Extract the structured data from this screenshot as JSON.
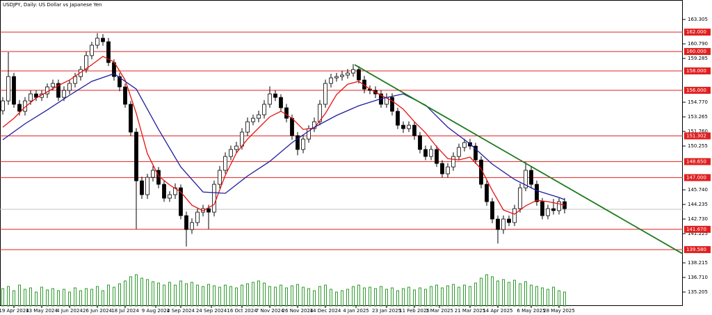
{
  "chart_data": {
    "type": "candlestick",
    "title": "USDJPY, Daily:  US Dollar vs Japanese Yen",
    "xlim": [
      -0.5,
      122.25
    ],
    "ylim": [
      133.77,
      165.31
    ],
    "xticks": [
      {
        "value": 2,
        "label": "19 Apr 2024"
      },
      {
        "value": 7,
        "label": "13 May 2024"
      },
      {
        "value": 12,
        "label": "4 Jun 2024"
      },
      {
        "value": 17,
        "label": "26 Jun 2024"
      },
      {
        "value": 22,
        "label": "18 Jul 2024"
      },
      {
        "value": 27.5,
        "label": "9 Aug 2024"
      },
      {
        "value": 32,
        "label": "2 Sep 2024"
      },
      {
        "value": 37.5,
        "label": "24 Sep 2024"
      },
      {
        "value": 43,
        "label": "16 Oct 2024"
      },
      {
        "value": 48,
        "label": "7 Nov 2024"
      },
      {
        "value": 53,
        "label": "26 Nov 2024"
      },
      {
        "value": 58,
        "label": "14 Dec 2024"
      },
      {
        "value": 63.5,
        "label": "4 Jan 2025"
      },
      {
        "value": 69,
        "label": "23 Jan 2025"
      },
      {
        "value": 74,
        "label": "11 Feb 2025"
      },
      {
        "value": 78.5,
        "label": "1 Mar 2025"
      },
      {
        "value": 84,
        "label": "21 Mar 2025"
      },
      {
        "value": 89,
        "label": "14 Apr 2025"
      },
      {
        "value": 95,
        "label": "6 May 2025"
      },
      {
        "value": 100,
        "label": "28 May 2025"
      }
    ],
    "yticks": [
      163.305,
      {
        "value": 160.79,
        "label": "160.790"
      },
      159.285,
      {
        "value": 154.77,
        "label": "154.770"
      },
      153.265,
      {
        "value": 151.76,
        "label": "151.760"
      },
      150.255,
      {
        "value": 145.74,
        "label": "145.740"
      },
      144.235,
      {
        "value": 142.73,
        "label": "142.730"
      },
      141.225,
      138.215,
      {
        "value": 136.71,
        "label": "136.710"
      },
      135.205
    ],
    "levels": [
      {
        "value": 162,
        "label": "162.000"
      },
      {
        "value": 160,
        "label": "160.000"
      },
      {
        "value": 158,
        "label": "158.000"
      },
      {
        "value": 156,
        "label": "156.000"
      },
      {
        "value": 151.302,
        "label": "151.302"
      },
      {
        "value": 148.65,
        "label": "148.650"
      },
      {
        "value": 147,
        "label": "147.000"
      },
      {
        "value": 141.67,
        "label": "141.670"
      },
      {
        "value": 139.58,
        "label": "139.580"
      }
    ],
    "level_color": "#e02020",
    "current_price": 143.73,
    "trendline": {
      "x": [
        63.25,
        122.25
      ],
      "values": [
        158.64,
        139.14
      ],
      "color": "#1e7a1e"
    },
    "ohlc": [
      [
        153.9,
        155.3,
        153.5,
        154.91
      ],
      [
        154.91,
        159.93,
        154.5,
        157.42
      ],
      [
        157.42,
        157.8,
        154.2,
        154.56
      ],
      [
        154.56,
        155.0,
        153.4,
        153.84
      ],
      [
        153.84,
        155.3,
        153.4,
        154.91
      ],
      [
        154.91,
        156.0,
        154.5,
        155.63
      ],
      [
        155.63,
        156.0,
        154.9,
        155.27
      ],
      [
        155.27,
        156.0,
        154.9,
        155.63
      ],
      [
        155.63,
        156.7,
        155.2,
        156.35
      ],
      [
        156.35,
        157.1,
        156.0,
        156.71
      ],
      [
        156.71,
        157.1,
        154.9,
        155.27
      ],
      [
        155.27,
        156.4,
        154.9,
        155.99
      ],
      [
        155.99,
        157.1,
        155.6,
        156.71
      ],
      [
        156.71,
        157.8,
        156.3,
        157.42
      ],
      [
        157.42,
        158.5,
        157.0,
        158.14
      ],
      [
        158.14,
        160.0,
        157.8,
        159.58
      ],
      [
        159.58,
        161.0,
        159.2,
        160.65
      ],
      [
        160.65,
        161.9,
        160.3,
        161.37
      ],
      [
        161.37,
        161.8,
        160.6,
        161.01
      ],
      [
        161.01,
        161.4,
        158.5,
        158.86
      ],
      [
        158.86,
        159.2,
        157.0,
        157.42
      ],
      [
        157.42,
        157.8,
        155.9,
        156.35
      ],
      [
        156.35,
        156.7,
        154.2,
        154.56
      ],
      [
        154.56,
        154.9,
        151.3,
        151.69
      ],
      [
        151.69,
        152.1,
        141.7,
        146.67
      ],
      [
        146.67,
        147.1,
        144.8,
        145.24
      ],
      [
        145.24,
        147.4,
        144.8,
        147.03
      ],
      [
        147.03,
        148.2,
        146.6,
        147.75
      ],
      [
        147.75,
        148.1,
        145.9,
        146.31
      ],
      [
        146.31,
        146.7,
        144.5,
        144.88
      ],
      [
        144.88,
        145.6,
        144.5,
        145.24
      ],
      [
        145.24,
        146.4,
        144.8,
        145.95
      ],
      [
        145.95,
        146.3,
        142.7,
        143.08
      ],
      [
        143.08,
        143.5,
        139.9,
        141.65
      ],
      [
        141.65,
        142.8,
        141.2,
        142.37
      ],
      [
        142.37,
        143.8,
        142.0,
        143.44
      ],
      [
        143.44,
        144.2,
        143.0,
        143.8
      ],
      [
        143.8,
        144.2,
        141.7,
        143.44
      ],
      [
        143.44,
        146.7,
        143.0,
        146.31
      ],
      [
        146.31,
        148.2,
        145.9,
        147.75
      ],
      [
        147.75,
        149.6,
        147.4,
        149.18
      ],
      [
        149.18,
        150.3,
        148.8,
        149.9
      ],
      [
        149.9,
        150.7,
        149.5,
        150.25
      ],
      [
        150.25,
        152.1,
        149.9,
        151.69
      ],
      [
        151.69,
        153.2,
        151.3,
        152.76
      ],
      [
        152.76,
        153.5,
        152.4,
        153.12
      ],
      [
        153.12,
        153.9,
        152.7,
        153.48
      ],
      [
        153.48,
        155.0,
        153.1,
        154.56
      ],
      [
        154.56,
        156.4,
        154.2,
        155.63
      ],
      [
        155.63,
        156.0,
        154.9,
        155.27
      ],
      [
        155.27,
        155.6,
        153.8,
        154.2
      ],
      [
        154.2,
        154.6,
        152.7,
        153.12
      ],
      [
        153.12,
        153.5,
        150.9,
        151.33
      ],
      [
        151.33,
        151.7,
        149.3,
        149.9
      ],
      [
        149.9,
        151.4,
        149.5,
        150.97
      ],
      [
        150.97,
        152.4,
        150.6,
        152.05
      ],
      [
        152.05,
        153.2,
        151.7,
        152.76
      ],
      [
        152.76,
        155.0,
        152.4,
        154.56
      ],
      [
        154.56,
        157.1,
        154.2,
        156.71
      ],
      [
        156.71,
        157.7,
        156.3,
        157.28
      ],
      [
        157.28,
        157.8,
        156.9,
        157.42
      ],
      [
        157.42,
        158.0,
        157.0,
        157.57
      ],
      [
        157.57,
        158.2,
        157.2,
        157.78
      ],
      [
        157.78,
        158.7,
        157.4,
        158.14
      ],
      [
        158.14,
        158.5,
        156.7,
        157.06
      ],
      [
        157.06,
        157.5,
        155.7,
        156.13
      ],
      [
        156.13,
        156.5,
        155.6,
        155.99
      ],
      [
        155.99,
        156.4,
        155.2,
        155.63
      ],
      [
        155.63,
        156.0,
        154.2,
        154.56
      ],
      [
        154.56,
        155.7,
        154.2,
        155.27
      ],
      [
        155.27,
        155.7,
        153.4,
        153.84
      ],
      [
        153.84,
        154.2,
        152.0,
        152.4
      ],
      [
        152.4,
        152.8,
        151.6,
        152.05
      ],
      [
        152.05,
        152.8,
        151.7,
        152.4
      ],
      [
        152.4,
        152.8,
        150.9,
        151.33
      ],
      [
        151.33,
        151.7,
        149.5,
        149.9
      ],
      [
        149.9,
        150.3,
        148.8,
        149.18
      ],
      [
        149.18,
        150.3,
        148.8,
        149.9
      ],
      [
        149.9,
        150.3,
        148.1,
        148.46
      ],
      [
        148.46,
        148.8,
        147.0,
        147.39
      ],
      [
        147.39,
        148.5,
        147.0,
        148.1
      ],
      [
        148.1,
        149.6,
        147.7,
        149.18
      ],
      [
        149.18,
        150.5,
        148.8,
        150.11
      ],
      [
        150.11,
        151.0,
        149.7,
        150.61
      ],
      [
        150.61,
        151.0,
        149.9,
        150.25
      ],
      [
        150.25,
        150.6,
        148.4,
        148.82
      ],
      [
        148.82,
        149.2,
        145.9,
        146.31
      ],
      [
        146.31,
        146.7,
        144.1,
        144.52
      ],
      [
        144.52,
        144.9,
        142.3,
        142.73
      ],
      [
        142.73,
        143.1,
        140.2,
        141.65
      ],
      [
        141.65,
        143.1,
        141.2,
        142.73
      ],
      [
        142.73,
        143.1,
        142.0,
        142.37
      ],
      [
        142.37,
        144.2,
        142.0,
        143.8
      ],
      [
        143.8,
        146.4,
        143.4,
        145.95
      ],
      [
        145.95,
        148.6,
        145.6,
        147.75
      ],
      [
        147.75,
        148.1,
        145.9,
        146.31
      ],
      [
        146.31,
        146.7,
        144.1,
        144.52
      ],
      [
        144.52,
        144.9,
        142.7,
        143.08
      ],
      [
        143.08,
        144.2,
        142.7,
        143.8
      ],
      [
        143.8,
        144.8,
        143.2,
        143.6
      ],
      [
        143.6,
        144.9,
        143.2,
        144.52
      ],
      [
        144.52,
        144.9,
        143.3,
        143.8
      ]
    ],
    "volume": [
      25,
      28,
      22,
      30,
      24,
      26,
      20,
      27,
      23,
      25,
      22,
      24,
      20,
      26,
      22,
      25,
      24,
      28,
      22,
      30,
      27,
      32,
      36,
      42,
      45,
      40,
      38,
      35,
      33,
      30,
      34,
      30,
      36,
      32,
      34,
      30,
      28,
      31,
      29,
      27,
      30,
      28,
      26,
      30,
      32,
      34,
      36,
      33,
      28,
      27,
      30,
      26,
      29,
      31,
      27,
      25,
      22,
      28,
      30,
      24,
      20,
      22,
      24,
      28,
      30,
      26,
      27,
      25,
      28,
      24,
      26,
      22,
      25,
      27,
      23,
      26,
      24,
      28,
      30,
      26,
      29,
      31,
      27,
      30,
      28,
      33,
      40,
      45,
      42,
      36,
      38,
      34,
      37,
      32,
      35,
      30,
      28,
      26,
      24,
      27,
      22,
      20
    ],
    "volume_color": "#2e9b2e",
    "moving_averages": [
      {
        "color": "#e81010",
        "x": [
          0,
          2,
          4,
          6,
          8,
          10,
          12,
          14,
          16,
          18,
          20,
          22,
          24,
          26,
          28,
          30,
          32,
          34,
          36,
          38,
          40,
          42,
          44,
          46,
          48,
          50,
          52,
          54,
          56,
          58,
          60,
          62,
          64,
          66,
          68,
          70,
          72,
          74,
          76,
          78,
          80,
          82,
          84,
          86,
          88,
          90,
          92,
          94,
          96,
          98,
          100,
          101
        ],
        "values": [
          152.19,
          153.12,
          154.27,
          155.2,
          155.85,
          156.49,
          157.06,
          157.85,
          158.64,
          159.5,
          158.93,
          157.06,
          153.62,
          149.46,
          147.17,
          146.24,
          145.52,
          144.16,
          143.58,
          144.23,
          147.24,
          149.54,
          150.97,
          152.12,
          153.26,
          153.84,
          153.12,
          151.97,
          152.12,
          153.62,
          155.56,
          156.63,
          156.92,
          156.13,
          155.49,
          154.91,
          154.05,
          152.76,
          151.62,
          150.18,
          148.96,
          148.82,
          149.11,
          147.89,
          145.66,
          143.66,
          143.23,
          144.09,
          144.66,
          144.52,
          144.3,
          144.16
        ]
      },
      {
        "color": "#1c1c9c",
        "x": [
          0,
          4,
          8,
          12,
          16,
          20,
          24,
          28,
          32,
          36,
          40,
          44,
          48,
          52,
          56,
          60,
          64,
          68,
          72,
          76,
          80,
          84,
          88,
          92,
          96,
          100,
          101
        ],
        "values": [
          150.9,
          152.55,
          153.98,
          155.49,
          156.92,
          157.71,
          156.13,
          151.97,
          148.1,
          145.52,
          145.38,
          147.17,
          148.67,
          150.61,
          152.19,
          153.41,
          154.41,
          155.13,
          155.63,
          154.48,
          152.19,
          150.47,
          148.39,
          146.81,
          145.66,
          144.95,
          144.73
        ]
      }
    ]
  }
}
